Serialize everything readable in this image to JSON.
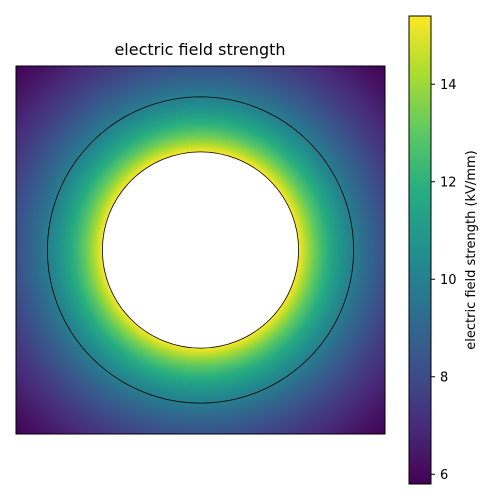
{
  "chart_data": {
    "type": "heatmap",
    "title": "electric field strength",
    "colormap": "viridis",
    "colorbar": {
      "label": "electric field strength (kV/mm)",
      "min": 5.8,
      "max": 15.4,
      "ticks": [
        6,
        8,
        10,
        12,
        14
      ],
      "tick_labels": [
        "6",
        "8",
        "10",
        "12",
        "14"
      ]
    },
    "geometry": {
      "inner_radius": 1.0,
      "outer_radius": 1.56,
      "domain_half_width": 1.88
    },
    "field": {
      "at_inner_radius": 15.4,
      "at_outer_radius": 9.9,
      "at_corner": 5.8
    },
    "grid": false,
    "axes_ticks_visible": false,
    "outline_color": "#000000",
    "hole_color": "#ffffff"
  }
}
